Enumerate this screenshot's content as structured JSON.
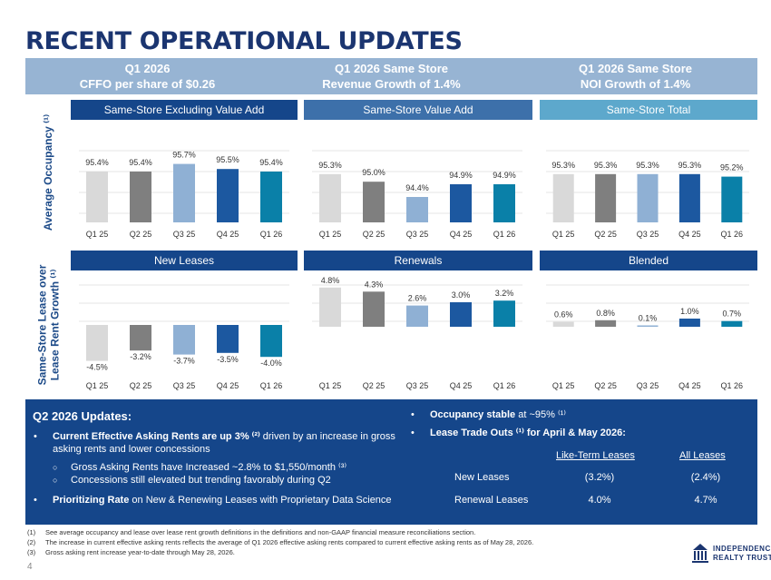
{
  "title": "RECENT OPERATIONAL UPDATES",
  "kpis": [
    {
      "line1": "Q1 2026",
      "line2": "CFFO per share of $0.26"
    },
    {
      "line1": "Q1 2026 Same Store",
      "line2": "Revenue Growth of 1.4%"
    },
    {
      "line1": "Q1 2026 Same Store",
      "line2": "NOI Growth of 1.4%"
    }
  ],
  "row_labels": {
    "occupancy": "Average Occupancy ⁽¹⁾",
    "growth_line1": "Same-Store Lease over",
    "growth_line2": "Lease Rent Growth ⁽¹⁾"
  },
  "colors": {
    "navy": "#15468a",
    "steel": "#3d70aa",
    "teal": "#5da8cc",
    "kpi_bar": "#97b4d3",
    "bar_series": [
      "#d9d9d9",
      "#7f7f7f",
      "#8fb0d4",
      "#1c58a0",
      "#0a80a8"
    ]
  },
  "chart_data": [
    {
      "type": "bar",
      "title": "Same-Store Excluding Value Add",
      "categories": [
        "Q1 25",
        "Q2 25",
        "Q3 25",
        "Q4 25",
        "Q1 26"
      ],
      "values": [
        95.4,
        95.4,
        95.7,
        95.5,
        95.4
      ],
      "labels": [
        "95.4%",
        "95.4%",
        "95.7%",
        "95.5%",
        "95.4%"
      ],
      "header_color": "#15468a"
    },
    {
      "type": "bar",
      "title": "Same-Store Value Add",
      "categories": [
        "Q1 25",
        "Q2 25",
        "Q3 25",
        "Q4 25",
        "Q1 26"
      ],
      "values": [
        95.3,
        95.0,
        94.4,
        94.9,
        94.9
      ],
      "labels": [
        "95.3%",
        "95.0%",
        "94.4%",
        "94.9%",
        "94.9%"
      ],
      "header_color": "#3d70aa"
    },
    {
      "type": "bar",
      "title": "Same-Store Total",
      "categories": [
        "Q1 25",
        "Q2 25",
        "Q3 25",
        "Q4 25",
        "Q1 26"
      ],
      "values": [
        95.3,
        95.3,
        95.3,
        95.3,
        95.2
      ],
      "labels": [
        "95.3%",
        "95.3%",
        "95.3%",
        "95.3%",
        "95.2%"
      ],
      "header_color": "#5da8cc"
    },
    {
      "type": "bar",
      "title": "New Leases",
      "categories": [
        "Q1 25",
        "Q2 25",
        "Q3 25",
        "Q4 25",
        "Q1 26"
      ],
      "values": [
        -4.5,
        -3.2,
        -3.7,
        -3.5,
        -4.0
      ],
      "labels": [
        "-4.5%",
        "-3.2%",
        "-3.7%",
        "-3.5%",
        "-4.0%"
      ],
      "header_color": "#15468a"
    },
    {
      "type": "bar",
      "title": "Renewals",
      "categories": [
        "Q1 25",
        "Q2 25",
        "Q3 25",
        "Q4 25",
        "Q1 26"
      ],
      "values": [
        4.8,
        4.3,
        2.6,
        3.0,
        3.2
      ],
      "labels": [
        "4.8%",
        "4.3%",
        "2.6%",
        "3.0%",
        "3.2%"
      ],
      "header_color": "#15468a"
    },
    {
      "type": "bar",
      "title": "Blended",
      "categories": [
        "Q1 25",
        "Q2 25",
        "Q3 25",
        "Q4 25",
        "Q1 26"
      ],
      "values": [
        0.6,
        0.8,
        0.1,
        1.0,
        0.7
      ],
      "labels": [
        "0.6%",
        "0.8%",
        "0.1%",
        "1.0%",
        "0.7%"
      ],
      "header_color": "#15468a"
    }
  ],
  "updates": {
    "title": "Q2 2026 Updates:",
    "bullet1_bold": "Current Effective Asking Rents are up 3% ⁽²⁾",
    "bullet1_rest": " driven by an increase in gross asking rents and lower concessions",
    "sub1": "Gross Asking Rents have Increased ~2.8% to $1,550/month ⁽³⁾",
    "sub2": "Concessions still elevated but trending favorably during Q2",
    "bullet2_bold": "Prioritizing Rate",
    "bullet2_rest": " on New & Renewing Leases with Proprietary Data Science",
    "right_bullet1_bold": "Occupancy stable",
    "right_bullet1_rest": " at ~95% ⁽¹⁾",
    "right_bullet2": "Lease Trade Outs ⁽¹⁾ for April & May 2026:",
    "table": {
      "col1": "Like-Term Leases",
      "col2": "All Leases",
      "rows": [
        {
          "label": "New Leases",
          "v1": "(3.2%)",
          "v2": "(2.4%)"
        },
        {
          "label": "Renewal Leases",
          "v1": "4.0%",
          "v2": "4.7%"
        }
      ]
    }
  },
  "footnotes": [
    {
      "num": "(1)",
      "text": "See average occupancy and lease over lease rent growth definitions in the definitions and non-GAAP financial measure reconciliations section."
    },
    {
      "num": "(2)",
      "text": "The increase in current effective asking rents reflects the average of Q1 2026 effective asking rents compared to current effective asking rents as of May 28, 2026."
    },
    {
      "num": "(3)",
      "text": "Gross asking rent increase year-to-date through May 28, 2026."
    }
  ],
  "page_number": "4",
  "logo": {
    "line1": "INDEPENDENCE",
    "line2": "REALTY TRUST"
  }
}
